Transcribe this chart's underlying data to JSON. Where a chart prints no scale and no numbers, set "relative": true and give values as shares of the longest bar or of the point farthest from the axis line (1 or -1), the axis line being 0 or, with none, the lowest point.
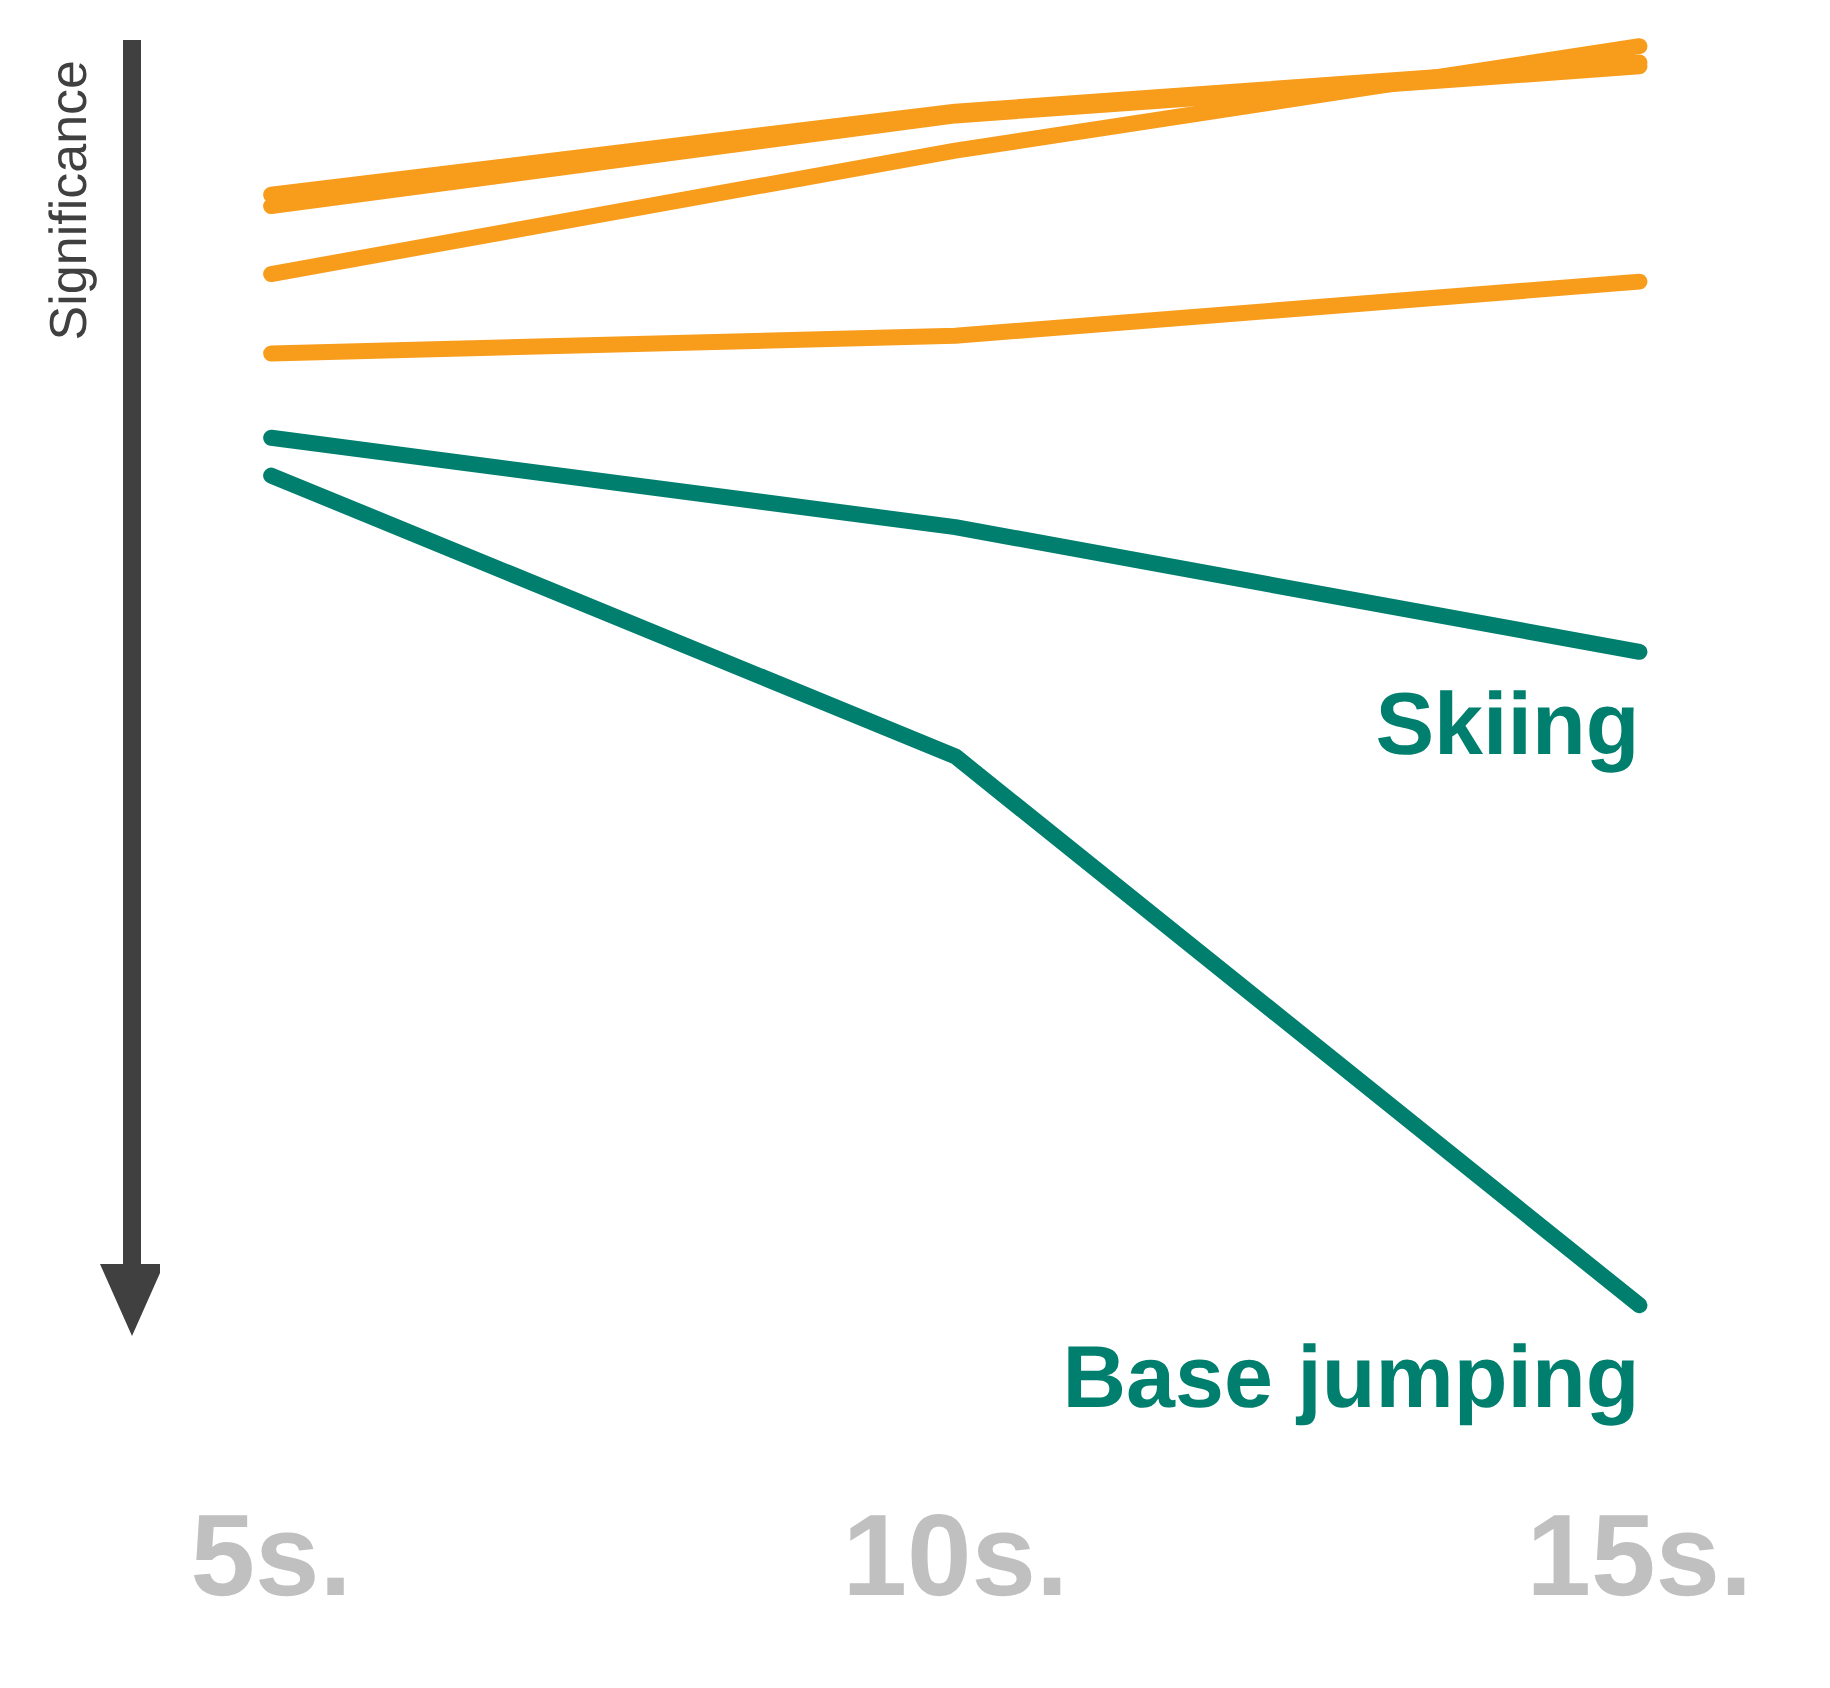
{
  "chart_data": {
    "type": "line",
    "ylabel": "Significance",
    "relative": true,
    "grid": false,
    "legend": false,
    "marker": "none",
    "line_style": "solid",
    "categories": [
      "5s.",
      "10s.",
      "15s."
    ],
    "series": [
      {
        "color": "#f89c1c",
        "values": [
          0.882,
          0.948,
          0.987
        ]
      },
      {
        "color": "#f89c1c",
        "values": [
          0.873,
          0.945,
          0.984
        ]
      },
      {
        "color": "#f89c1c",
        "values": [
          0.819,
          0.917,
          1.0
        ]
      },
      {
        "color": "#f89c1c",
        "values": [
          0.756,
          0.77,
          0.813
        ]
      },
      {
        "name": "Skiing",
        "color": "#007f6e",
        "values": [
          0.689,
          0.618,
          0.519
        ]
      },
      {
        "name": "Base jumping",
        "color": "#007f6e",
        "values": [
          0.659,
          0.436,
          0.0
        ]
      }
    ]
  }
}
